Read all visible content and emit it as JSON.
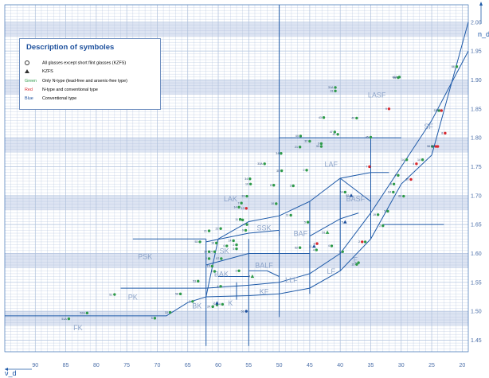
{
  "legend": {
    "title": "Description of symboles",
    "items": [
      {
        "symbol": "circle",
        "text": "All glasses except short flint glasses (KZFS)"
      },
      {
        "symbol": "triangle",
        "text": "KZFS"
      }
    ],
    "color_items": [
      {
        "key": "Green",
        "text": "Only N-type (lead-free and arsenic-free type)",
        "color": "#2e9a4a"
      },
      {
        "key": "Red",
        "text": "N-type and conventional type",
        "color": "#d9282e"
      },
      {
        "key": "Blue",
        "text": "Conventional type",
        "color": "#1c4f9c"
      }
    ]
  },
  "chart_data": {
    "type": "scatter",
    "title": "",
    "xlabel": "ν_d",
    "ylabel": "n_d",
    "xlim": [
      95,
      19
    ],
    "ylim": [
      1.43,
      2.03
    ],
    "x_ticks": [
      90,
      85,
      80,
      75,
      70,
      65,
      60,
      55,
      50,
      45,
      40,
      35,
      30,
      25,
      20
    ],
    "y_ticks": [
      1.45,
      1.5,
      1.55,
      1.6,
      1.65,
      1.7,
      1.75,
      1.8,
      1.85,
      1.9,
      1.95,
      2.0
    ],
    "colors": {
      "green": "#2e9a4a",
      "red": "#d9282e",
      "blue": "#1c4f9c",
      "line": "#1e5aa8",
      "band": "#dde4f2",
      "grid": "#aec0dc"
    },
    "regions": [
      {
        "name": "FK",
        "vd": 83,
        "nd": 1.467
      },
      {
        "name": "PK",
        "vd": 74,
        "nd": 1.52
      },
      {
        "name": "PSK",
        "vd": 72,
        "nd": 1.59
      },
      {
        "name": "BK",
        "vd": 63.5,
        "nd": 1.505
      },
      {
        "name": "K",
        "vd": 58,
        "nd": 1.51
      },
      {
        "name": "BAK",
        "vd": 59.5,
        "nd": 1.56
      },
      {
        "name": "SK",
        "vd": 59,
        "nd": 1.6
      },
      {
        "name": "LAK",
        "vd": 58,
        "nd": 1.69
      },
      {
        "name": "SSK",
        "vd": 52.5,
        "nd": 1.64
      },
      {
        "name": "KF",
        "vd": 52.5,
        "nd": 1.53
      },
      {
        "name": "BALF",
        "vd": 52.5,
        "nd": 1.575
      },
      {
        "name": "LLF",
        "vd": 48,
        "nd": 1.55
      },
      {
        "name": "LF",
        "vd": 41.5,
        "nd": 1.565
      },
      {
        "name": "BAF",
        "vd": 46.5,
        "nd": 1.63
      },
      {
        "name": "F",
        "vd": 37.5,
        "nd": 1.585
      },
      {
        "name": "BASF",
        "vd": 37.5,
        "nd": 1.69
      },
      {
        "name": "LAF",
        "vd": 41.5,
        "nd": 1.75
      },
      {
        "name": "LASF",
        "vd": 34,
        "nd": 1.87
      },
      {
        "name": "SF",
        "vd": 25.5,
        "nd": 1.815
      }
    ],
    "series": [
      {
        "color": "green",
        "shape": "circle",
        "points": [
          {
            "label": "51A",
            "vd": 84.5,
            "nd": 1.487
          },
          {
            "label": "52A",
            "vd": 81.5,
            "nd": 1.497
          },
          {
            "label": "5",
            "vd": 70.4,
            "nd": 1.488
          },
          {
            "label": "10",
            "vd": 67.9,
            "nd": 1.498
          },
          {
            "label": "2",
            "vd": 64.2,
            "nd": 1.517
          },
          {
            "label": "58",
            "vd": 66.2,
            "nd": 1.53
          },
          {
            "label": "51",
            "vd": 77,
            "nd": 1.529
          },
          {
            "label": "2K",
            "vd": 60.9,
            "nd": 1.508
          },
          {
            "label": "7",
            "vd": 60.2,
            "nd": 1.511
          },
          {
            "label": "4",
            "vd": 59.3,
            "nd": 1.512
          },
          {
            "label": "53",
            "vd": 63.3,
            "nd": 1.552
          },
          {
            "label": "4",
            "vd": 59.6,
            "nd": 1.543
          },
          {
            "label": "2",
            "vd": 60.6,
            "nd": 1.569
          },
          {
            "label": "15",
            "vd": 61,
            "nd": 1.578
          },
          {
            "label": "34",
            "vd": 61.5,
            "nd": 1.603
          },
          {
            "label": "2",
            "vd": 61.5,
            "nd": 1.591
          },
          {
            "label": "57",
            "vd": 59.5,
            "nd": 1.591
          },
          {
            "label": "3",
            "vd": 56.6,
            "nd": 1.57
          },
          {
            "label": "14",
            "vd": 60.6,
            "nd": 1.603
          },
          {
            "label": "4",
            "vd": 58.6,
            "nd": 1.613
          },
          {
            "label": "5",
            "vd": 57,
            "nd": 1.608
          },
          {
            "label": "16",
            "vd": 60.3,
            "nd": 1.618
          },
          {
            "label": "14",
            "vd": 57.5,
            "nd": 1.622
          },
          {
            "label": "2",
            "vd": 57,
            "nd": 1.615
          },
          {
            "label": "53",
            "vd": 63,
            "nd": 1.62
          },
          {
            "label": "21",
            "vd": 61.5,
            "nd": 1.639
          },
          {
            "label": "22",
            "vd": 59.6,
            "nd": 1.643
          },
          {
            "label": "9",
            "vd": 55.5,
            "nd": 1.64
          },
          {
            "label": "4",
            "vd": 55.3,
            "nd": 1.65
          },
          {
            "label": "8",
            "vd": 56,
            "nd": 1.658
          },
          {
            "label": "11",
            "vd": 56.4,
            "nd": 1.659
          },
          {
            "label": "14",
            "vd": 56.6,
            "nd": 1.68
          },
          {
            "label": "7",
            "vd": 56.2,
            "nd": 1.687
          },
          {
            "label": "33",
            "vd": 55.3,
            "nd": 1.699
          },
          {
            "label": "10",
            "vd": 54.7,
            "nd": 1.72
          },
          {
            "label": "34",
            "vd": 54.8,
            "nd": 1.729
          },
          {
            "label": "33A",
            "vd": 52.4,
            "nd": 1.755
          },
          {
            "label": "8",
            "vd": 50.9,
            "nd": 1.718
          },
          {
            "label": "35",
            "vd": 49.6,
            "nd": 1.743
          },
          {
            "label": "3",
            "vd": 47.7,
            "nd": 1.717
          },
          {
            "label": "2",
            "vd": 45.5,
            "nd": 1.744
          },
          {
            "label": "34",
            "vd": 49.7,
            "nd": 1.773
          },
          {
            "label": "21",
            "vd": 46.6,
            "nd": 1.784
          },
          {
            "label": "33",
            "vd": 43.1,
            "nd": 1.785
          },
          {
            "label": "44",
            "vd": 46.5,
            "nd": 1.803
          },
          {
            "label": "32",
            "vd": 45,
            "nd": 1.794
          },
          {
            "label": "3",
            "vd": 43.1,
            "nd": 1.79
          },
          {
            "label": "45",
            "vd": 35,
            "nd": 1.801
          },
          {
            "label": "41",
            "vd": 40.4,
            "nd": 1.806
          },
          {
            "label": "47",
            "vd": 40.9,
            "nd": 1.81
          },
          {
            "label": "43",
            "vd": 42.7,
            "nd": 1.835
          },
          {
            "label": "40",
            "vd": 37.3,
            "nd": 1.834
          },
          {
            "label": "31",
            "vd": 40.8,
            "nd": 1.881
          },
          {
            "label": "31A",
            "vd": 40.8,
            "nd": 1.887
          },
          {
            "label": "46",
            "vd": 30.5,
            "nd": 1.904
          },
          {
            "label": "46A",
            "vd": 30.3,
            "nd": 1.905
          },
          {
            "label": "66",
            "vd": 20.9,
            "nd": 1.923
          },
          {
            "label": "10",
            "vd": 50.5,
            "nd": 1.686
          },
          {
            "label": "11",
            "vd": 48.1,
            "nd": 1.666
          },
          {
            "label": "5",
            "vd": 45.3,
            "nd": 1.654
          },
          {
            "label": "52",
            "vd": 46.6,
            "nd": 1.61
          },
          {
            "label": "4",
            "vd": 43.9,
            "nd": 1.606
          },
          {
            "label": "4",
            "vd": 41.4,
            "nd": 1.613
          },
          {
            "label": "5",
            "vd": 39.6,
            "nd": 1.603
          },
          {
            "label": "15",
            "vd": 37.3,
            "nd": 1.581
          },
          {
            "label": "9",
            "vd": 35.9,
            "nd": 1.62
          },
          {
            "label": "64",
            "vd": 39.2,
            "nd": 1.706
          },
          {
            "label": "14",
            "vd": 29.1,
            "nd": 1.762
          },
          {
            "label": "66",
            "vd": 29.6,
            "nd": 1.699
          },
          {
            "label": "5",
            "vd": 32.2,
            "nd": 1.673
          },
          {
            "label": "19",
            "vd": 33.8,
            "nd": 1.667
          },
          {
            "label": "5",
            "vd": 37,
            "nd": 1.584
          },
          {
            "label": "57",
            "vd": 23.8,
            "nd": 1.847
          },
          {
            "label": "64",
            "vd": 31.3,
            "nd": 1.706
          },
          {
            "label": "4",
            "vd": 30.5,
            "nd": 1.735
          },
          {
            "label": "8",
            "vd": 31.2,
            "nd": 1.72
          },
          {
            "label": "56",
            "vd": 24.9,
            "nd": 1.785
          },
          {
            "label": "14",
            "vd": 26.5,
            "nd": 1.762
          },
          {
            "label": "2",
            "vd": 33,
            "nd": 1.648
          }
        ]
      },
      {
        "color": "red",
        "shape": "circle",
        "points": [
          {
            "label": "12",
            "vd": 55.4,
            "nd": 1.678
          },
          {
            "label": "7",
            "vd": 35.2,
            "nd": 1.75
          },
          {
            "label": "9",
            "vd": 32,
            "nd": 1.85
          },
          {
            "label": "57",
            "vd": 23.4,
            "nd": 1.847
          },
          {
            "label": "10",
            "vd": 28.4,
            "nd": 1.728
          },
          {
            "label": "8",
            "vd": 22.8,
            "nd": 1.808
          },
          {
            "label": "56",
            "vd": 24,
            "nd": 1.785
          },
          {
            "label": "57",
            "vd": 24.3,
            "nd": 1.785
          },
          {
            "label": "4",
            "vd": 27.5,
            "nd": 1.755
          },
          {
            "label": "2",
            "vd": 36.4,
            "nd": 1.62
          },
          {
            "label": "4",
            "vd": 43.8,
            "nd": 1.617
          }
        ]
      },
      {
        "color": "blue",
        "shape": "circle",
        "points": [
          {
            "label": "51",
            "vd": 55.4,
            "nd": 1.5
          }
        ]
      },
      {
        "color": "green",
        "shape": "triangle",
        "points": [
          {
            "label": "4",
            "vd": 54.4,
            "nd": 1.56
          },
          {
            "label": "51",
            "vd": 42.1,
            "nd": 1.636
          }
        ]
      },
      {
        "color": "blue",
        "shape": "triangle",
        "points": [
          {
            "label": "5",
            "vd": 39.2,
            "nd": 1.654
          },
          {
            "label": "2",
            "vd": 60.2,
            "nd": 1.514
          },
          {
            "label": "52",
            "vd": 38.2,
            "nd": 1.7
          },
          {
            "label": "11",
            "vd": 44.3,
            "nd": 1.612
          }
        ]
      }
    ]
  }
}
